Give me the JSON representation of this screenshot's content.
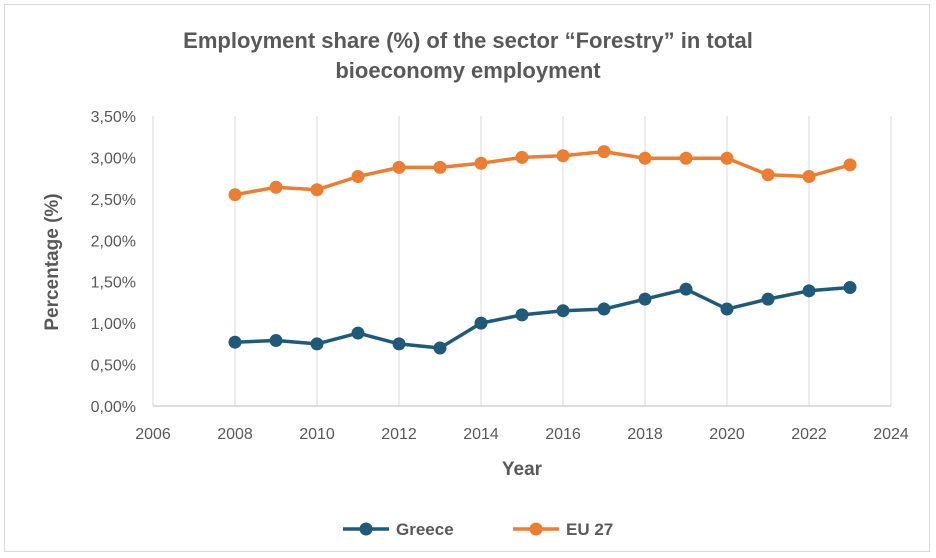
{
  "chart_data": {
    "type": "line",
    "title_line1": "Employment share (%) of the sector “Forestry” in total",
    "title_line2": "bioeconomy employment",
    "xlabel": "Year",
    "ylabel": "Percentage (%)",
    "xlim": [
      2006,
      2024
    ],
    "x_ticks": [
      2006,
      2008,
      2010,
      2012,
      2014,
      2016,
      2018,
      2020,
      2022,
      2024
    ],
    "x_tick_labels": [
      "2006",
      "2008",
      "2010",
      "2012",
      "2014",
      "2016",
      "2018",
      "2020",
      "2022",
      "2024"
    ],
    "ylim": [
      0,
      3.5
    ],
    "y_ticks": [
      0,
      0.5,
      1.0,
      1.5,
      2.0,
      2.5,
      3.0,
      3.5
    ],
    "y_tick_labels": [
      "0,00%",
      "0,50%",
      "1,00%",
      "1,50%",
      "2,00%",
      "2,50%",
      "3,00%",
      "3,50%"
    ],
    "grid": "vertical",
    "legend_position": "bottom",
    "x": [
      2008,
      2009,
      2010,
      2011,
      2012,
      2013,
      2014,
      2015,
      2016,
      2017,
      2018,
      2019,
      2020,
      2021,
      2022,
      2023
    ],
    "series": [
      {
        "name": "Greece",
        "color": "#1f5a7a",
        "values": [
          0.77,
          0.79,
          0.75,
          0.88,
          0.75,
          0.7,
          1.0,
          1.1,
          1.15,
          1.17,
          1.29,
          1.41,
          1.17,
          1.29,
          1.39,
          1.43
        ]
      },
      {
        "name": "EU 27",
        "color": "#ed7d31",
        "values": [
          2.55,
          2.64,
          2.61,
          2.77,
          2.88,
          2.88,
          2.93,
          3.0,
          3.02,
          3.07,
          2.99,
          2.99,
          2.99,
          2.79,
          2.77,
          2.91
        ]
      }
    ]
  }
}
